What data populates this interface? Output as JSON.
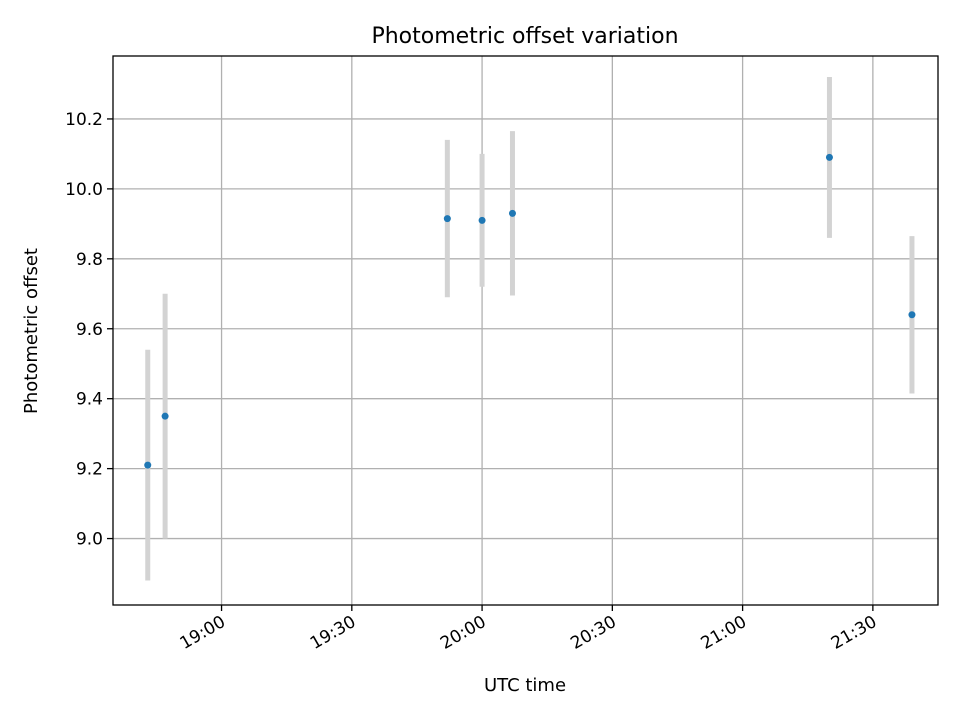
{
  "chart_data": {
    "type": "scatter",
    "title": "Photometric offset variation",
    "xlabel": "UTC time",
    "ylabel": "Photometric offset",
    "x_axis_type": "time",
    "xlim": [
      "18:35",
      "21:45"
    ],
    "ylim": [
      8.81,
      10.38
    ],
    "x_ticks": [
      "19:00",
      "19:30",
      "20:00",
      "20:30",
      "21:00",
      "21:30"
    ],
    "y_ticks": [
      9.0,
      9.2,
      9.4,
      9.6,
      9.8,
      10.0,
      10.2
    ],
    "y_tick_labels": [
      "9.0",
      "9.2",
      "9.4",
      "9.6",
      "9.8",
      "10.0",
      "10.2"
    ],
    "grid": true,
    "series": [
      {
        "marker_color": "#1f77b4",
        "errorbar_color": "#d3d3d3",
        "points": [
          {
            "x": "18:43",
            "y": 9.21,
            "y_err": 0.33
          },
          {
            "x": "18:47",
            "y": 9.35,
            "y_err": 0.35
          },
          {
            "x": "19:52",
            "y": 9.915,
            "y_err": 0.225
          },
          {
            "x": "20:00",
            "y": 9.91,
            "y_err": 0.19
          },
          {
            "x": "20:07",
            "y": 9.93,
            "y_err": 0.235
          },
          {
            "x": "21:20",
            "y": 10.09,
            "y_err": 0.23
          },
          {
            "x": "21:39",
            "y": 9.64,
            "y_err": 0.225
          }
        ]
      }
    ]
  }
}
